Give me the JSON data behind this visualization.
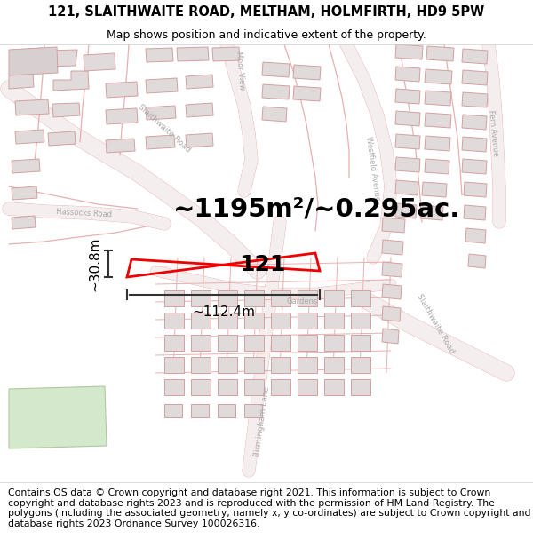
{
  "title_line1": "121, SLAITHWAITE ROAD, MELTHAM, HOLMFIRTH, HD9 5PW",
  "title_line2": "Map shows position and indicative extent of the property.",
  "footer_text": "Contains OS data © Crown copyright and database right 2021. This information is subject to Crown copyright and database rights 2023 and is reproduced with the permission of HM Land Registry. The polygons (including the associated geometry, namely x, y co-ordinates) are subject to Crown copyright and database rights 2023 Ordnance Survey 100026316.",
  "area_label": "~1195m²/~0.295ac.",
  "width_label": "~112.4m",
  "height_label": "~30.8m",
  "plot_number": "121",
  "map_bg": "#ffffff",
  "red_color": "#ee0000",
  "road_outline": "#e8b0b0",
  "road_fill": "#f5eded",
  "building_fill": "#e0dada",
  "building_outline": "#d4a0a0",
  "road_label_color": "#aaaaaa",
  "dim_color": "#333333",
  "title_color": "#000000",
  "footer_color": "#000000",
  "title_fontsize": 10.5,
  "subtitle_fontsize": 9,
  "area_fontsize": 21,
  "dim_fontsize": 11,
  "plot_num_fontsize": 18,
  "footer_fontsize": 7.8,
  "green_fill": "#d4e8cc",
  "green_outline": "#b0c8a0"
}
